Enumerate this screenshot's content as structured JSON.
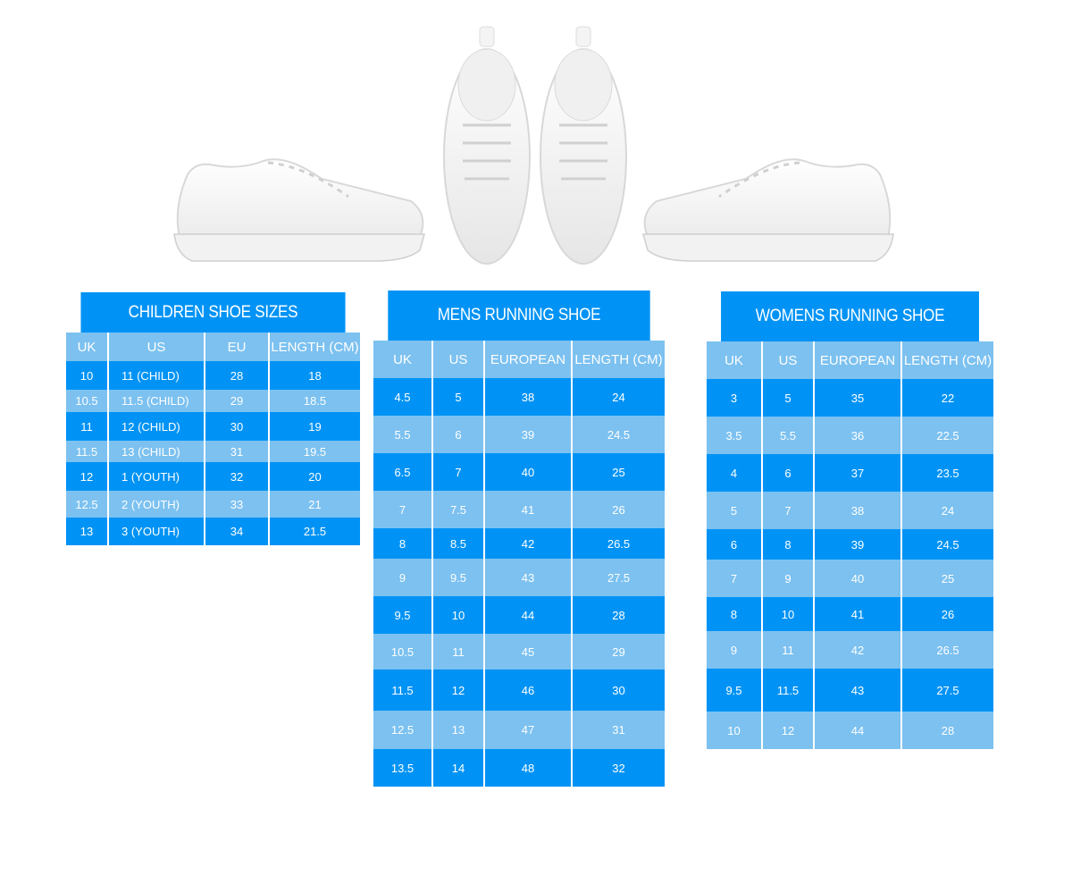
{
  "colors": {
    "dark_row": "#0093f5",
    "light_row": "#7cc1f0",
    "text": "#ffffff"
  },
  "product_images": [
    "shoe-side-left",
    "shoe-top-pair",
    "shoe-side-right"
  ],
  "children": {
    "title": "CHILDREN SHOE SIZES",
    "headers": [
      "UK",
      "US",
      "EU",
      "LENGTH (CM)"
    ],
    "rows": [
      [
        "10",
        "11 (CHILD)",
        "28",
        "18"
      ],
      [
        "10.5",
        "11.5 (CHILD)",
        "29",
        "18.5"
      ],
      [
        "11",
        "12 (CHILD)",
        "30",
        "19"
      ],
      [
        "11.5",
        "13 (CHILD)",
        "31",
        "19.5"
      ],
      [
        "12",
        "1 (YOUTH)",
        "32",
        "20"
      ],
      [
        "12.5",
        "2 (YOUTH)",
        "33",
        "21"
      ],
      [
        "13",
        "3 (YOUTH)",
        "34",
        "21.5"
      ]
    ]
  },
  "mens": {
    "title": "MENS RUNNING SHOE",
    "headers": [
      "UK",
      "US",
      "EUROPEAN",
      "LENGTH (CM)"
    ],
    "rows": [
      [
        "4.5",
        "5",
        "38",
        "24"
      ],
      [
        "5.5",
        "6",
        "39",
        "24.5"
      ],
      [
        "6.5",
        "7",
        "40",
        "25"
      ],
      [
        "7",
        "7.5",
        "41",
        "26"
      ],
      [
        "8",
        "8.5",
        "42",
        "26.5"
      ],
      [
        "9",
        "9.5",
        "43",
        "27.5"
      ],
      [
        "9.5",
        "10",
        "44",
        "28"
      ],
      [
        "10.5",
        "11",
        "45",
        "29"
      ],
      [
        "11.5",
        "12",
        "46",
        "30"
      ],
      [
        "12.5",
        "13",
        "47",
        "31"
      ],
      [
        "13.5",
        "14",
        "48",
        "32"
      ]
    ]
  },
  "womens": {
    "title": "WOMENS RUNNING SHOE",
    "headers": [
      "UK",
      "US",
      "EUROPEAN",
      "LENGTH (CM)"
    ],
    "rows": [
      [
        "3",
        "5",
        "35",
        "22"
      ],
      [
        "3.5",
        "5.5",
        "36",
        "22.5"
      ],
      [
        "4",
        "6",
        "37",
        "23.5"
      ],
      [
        "5",
        "7",
        "38",
        "24"
      ],
      [
        "6",
        "8",
        "39",
        "24.5"
      ],
      [
        "7",
        "9",
        "40",
        "25"
      ],
      [
        "8",
        "10",
        "41",
        "26"
      ],
      [
        "9",
        "11",
        "42",
        "26.5"
      ],
      [
        "9.5",
        "11.5",
        "43",
        "27.5"
      ],
      [
        "10",
        "12",
        "44",
        "28"
      ]
    ]
  }
}
